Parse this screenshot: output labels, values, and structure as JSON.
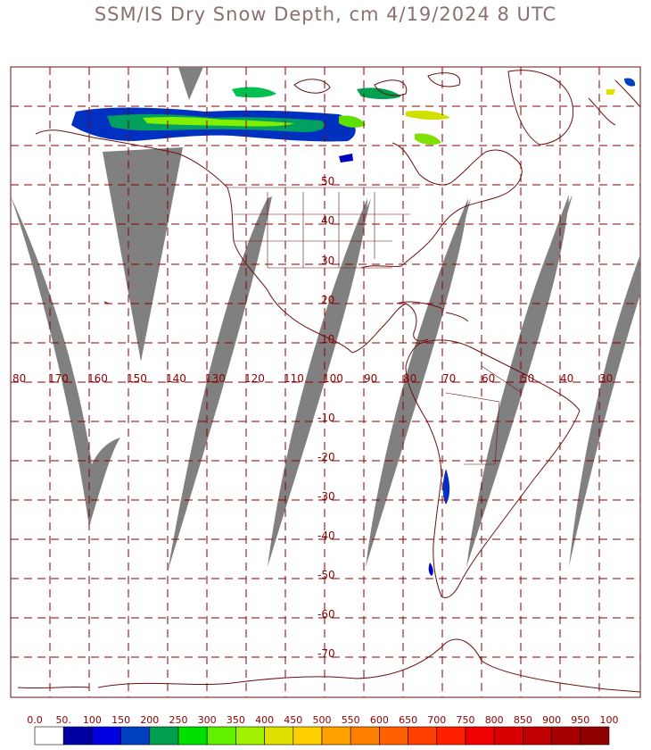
{
  "title": "SSM/IS Dry Snow Depth, cm 4/19/2024 8 UTC",
  "longitudes": [
    "80",
    "170",
    "160",
    "150",
    "140",
    "130",
    "120",
    "110",
    "100",
    "90",
    "80",
    "70",
    "60",
    "50",
    "40",
    "30"
  ],
  "latitudes": [
    "50",
    "40",
    "30",
    "20",
    "10",
    "10",
    "20",
    "30",
    "40",
    "50",
    "60",
    "70"
  ],
  "latitude_signs": [
    "",
    "",
    "",
    "",
    "",
    "-",
    "-",
    "-",
    "-",
    "-",
    "-",
    "-"
  ],
  "legend": {
    "labels": [
      "0.0",
      "50.",
      "100",
      "150",
      "200",
      "250",
      "300",
      "350",
      "400",
      "450",
      "500",
      "550",
      "600",
      "650",
      "700",
      "750",
      "800",
      "850",
      "900",
      "950",
      "100"
    ],
    "colors": [
      "#ffffff",
      "#0000a0",
      "#0000e0",
      "#0040c0",
      "#00a050",
      "#00e000",
      "#60f000",
      "#a0f000",
      "#e0e000",
      "#ffd000",
      "#ffa000",
      "#ff8000",
      "#ff6000",
      "#ff4000",
      "#ff2000",
      "#f00000",
      "#d80000",
      "#c00000",
      "#a80000",
      "#900000"
    ]
  },
  "colors": {
    "grid": "#8a0000",
    "coast": "#6a1010",
    "swath": "#808080"
  }
}
